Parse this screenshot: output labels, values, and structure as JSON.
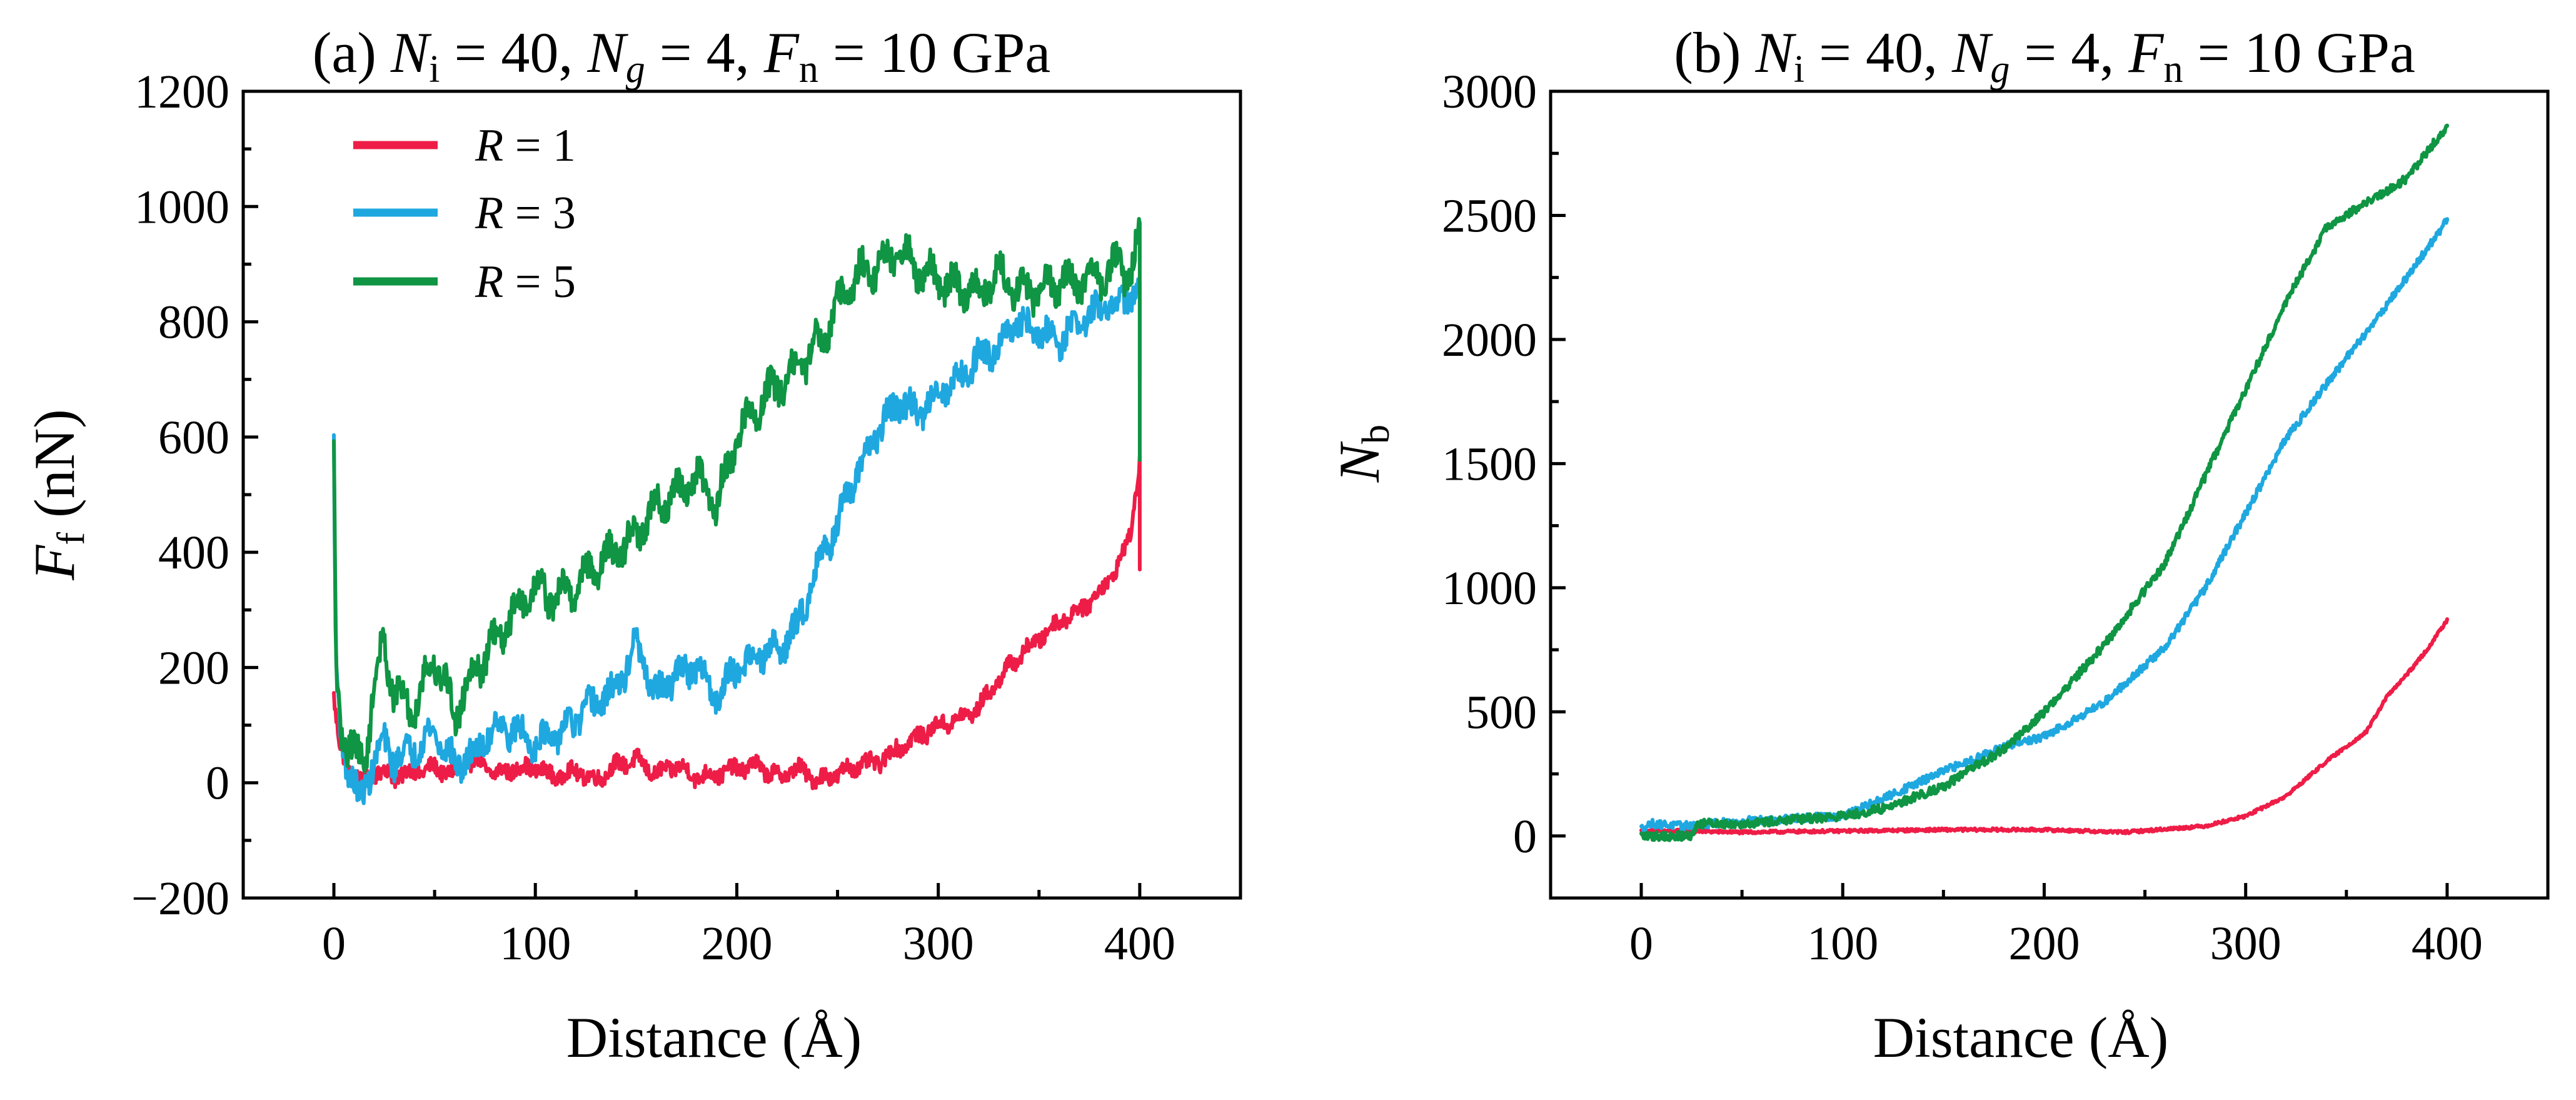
{
  "chart_data": [
    {
      "type": "line",
      "panel": "a",
      "title": {
        "prefix": "(a)",
        "n_i": "40",
        "n_g": "4",
        "f_n": "10 GPa"
      },
      "xlabel": "Distance (Å)",
      "ylabel": {
        "symbol": "F",
        "subscript": "f",
        "unit": "(nN)"
      },
      "xlim": [
        -45,
        450
      ],
      "ylim": [
        -200,
        1200
      ],
      "xticks": [
        0,
        100,
        200,
        300,
        400
      ],
      "yticks": [
        -200,
        0,
        200,
        400,
        600,
        800,
        1000,
        1200
      ],
      "ytick_labels": [
        "−200",
        "0",
        "200",
        "400",
        "600",
        "800",
        "1000",
        "1200"
      ],
      "legend_position": "top-left",
      "series": [
        {
          "name": "R = 1",
          "label_prefix": "R",
          "label_value": "= 1",
          "color": "#EE1D47",
          "noise": 14,
          "wave": 14,
          "x": [
            0,
            1,
            3,
            6,
            10,
            15,
            20,
            25,
            30,
            40,
            50,
            60,
            70,
            80,
            90,
            100,
            110,
            120,
            130,
            140,
            150,
            160,
            170,
            180,
            190,
            200,
            210,
            220,
            230,
            240,
            250,
            260,
            270,
            280,
            290,
            300,
            310,
            320,
            330,
            340,
            350,
            360,
            370,
            380,
            390,
            395,
            398,
            400,
            400
          ],
          "y": [
            150,
            110,
            60,
            30,
            10,
            5,
            15,
            20,
            10,
            20,
            25,
            15,
            40,
            15,
            25,
            25,
            10,
            20,
            5,
            30,
            40,
            15,
            30,
            10,
            15,
            25,
            30,
            10,
            25,
            5,
            15,
            30,
            35,
            60,
            80,
            100,
            110,
            130,
            180,
            220,
            250,
            280,
            300,
            330,
            380,
            430,
            500,
            560,
            370
          ]
        },
        {
          "name": "R = 3",
          "label_prefix": "R",
          "label_value": "= 3",
          "color": "#1FA8E0",
          "noise": 24,
          "wave": 30,
          "x": [
            0,
            1,
            3,
            6,
            10,
            13,
            16,
            20,
            25,
            30,
            40,
            50,
            60,
            70,
            80,
            90,
            100,
            110,
            120,
            130,
            140,
            150,
            160,
            170,
            180,
            190,
            200,
            210,
            220,
            230,
            240,
            250,
            260,
            270,
            280,
            290,
            300,
            310,
            320,
            330,
            340,
            350,
            360,
            370,
            380,
            390,
            395,
            400,
            400
          ],
          "y": [
            580,
            200,
            100,
            40,
            0,
            -40,
            0,
            40,
            70,
            40,
            60,
            90,
            30,
            50,
            100,
            90,
            70,
            80,
            110,
            140,
            160,
            240,
            150,
            190,
            200,
            150,
            200,
            220,
            230,
            270,
            380,
            450,
            540,
            610,
            660,
            640,
            680,
            700,
            740,
            760,
            800,
            780,
            770,
            800,
            820,
            830,
            850,
            850,
            700
          ]
        },
        {
          "name": "R = 5",
          "label_prefix": "R",
          "label_value": "= 5",
          "color": "#0F9543",
          "noise": 26,
          "wave": 45,
          "x": [
            0,
            1,
            3,
            6,
            10,
            15,
            20,
            25,
            30,
            40,
            50,
            60,
            70,
            80,
            90,
            100,
            110,
            120,
            130,
            140,
            150,
            160,
            170,
            180,
            190,
            200,
            210,
            220,
            230,
            240,
            250,
            260,
            270,
            280,
            290,
            300,
            310,
            320,
            330,
            340,
            350,
            360,
            370,
            380,
            390,
            395,
            400,
            400
          ],
          "y": [
            560,
            200,
            110,
            70,
            50,
            40,
            160,
            250,
            150,
            130,
            220,
            120,
            200,
            240,
            300,
            340,
            320,
            340,
            380,
            400,
            430,
            480,
            500,
            530,
            480,
            600,
            650,
            690,
            720,
            760,
            830,
            880,
            900,
            920,
            890,
            870,
            860,
            850,
            880,
            850,
            860,
            870,
            870,
            880,
            900,
            880,
            950,
            560
          ]
        }
      ]
    },
    {
      "type": "line",
      "panel": "b",
      "title": {
        "prefix": "(b)",
        "n_i": "40",
        "n_g": "4",
        "f_n": "10 GPa"
      },
      "xlabel": "Distance (Å)",
      "ylabel": {
        "symbol": "N",
        "subscript": "b",
        "unit": ""
      },
      "xlim": [
        -45,
        450
      ],
      "ylim": [
        -250,
        3000
      ],
      "xticks": [
        0,
        100,
        200,
        300,
        400
      ],
      "yticks": [
        0,
        500,
        1000,
        1500,
        2000,
        2500,
        3000
      ],
      "ytick_labels": [
        "0",
        "500",
        "1000",
        "1500",
        "2000",
        "2500",
        "3000"
      ],
      "series": [
        {
          "name": "R = 1",
          "color": "#EE1D47",
          "noise": 6,
          "wave": 0,
          "x": [
            0,
            20,
            50,
            100,
            150,
            200,
            240,
            280,
            300,
            320,
            340,
            360,
            370,
            380,
            390,
            400
          ],
          "y": [
            20,
            20,
            15,
            20,
            25,
            25,
            15,
            40,
            80,
            160,
            300,
            420,
            560,
            650,
            750,
            870
          ]
        },
        {
          "name": "R = 3",
          "color": "#1FA8E0",
          "noise": 16,
          "wave": 0,
          "x": [
            0,
            5,
            20,
            50,
            100,
            120,
            150,
            180,
            200,
            230,
            260,
            280,
            300,
            320,
            340,
            360,
            380,
            400
          ],
          "y": [
            30,
            50,
            40,
            60,
            80,
            150,
            260,
            360,
            400,
            540,
            760,
            1000,
            1300,
            1600,
            1820,
            2030,
            2250,
            2480
          ]
        },
        {
          "name": "R = 5",
          "color": "#0F9543",
          "noise": 18,
          "wave": 0,
          "x": [
            0,
            25,
            28,
            50,
            100,
            120,
            150,
            180,
            200,
            230,
            260,
            280,
            300,
            320,
            340,
            360,
            380,
            400
          ],
          "y": [
            0,
            0,
            50,
            50,
            80,
            110,
            200,
            350,
            500,
            770,
            1100,
            1450,
            1800,
            2150,
            2450,
            2550,
            2650,
            2860
          ]
        }
      ]
    }
  ]
}
